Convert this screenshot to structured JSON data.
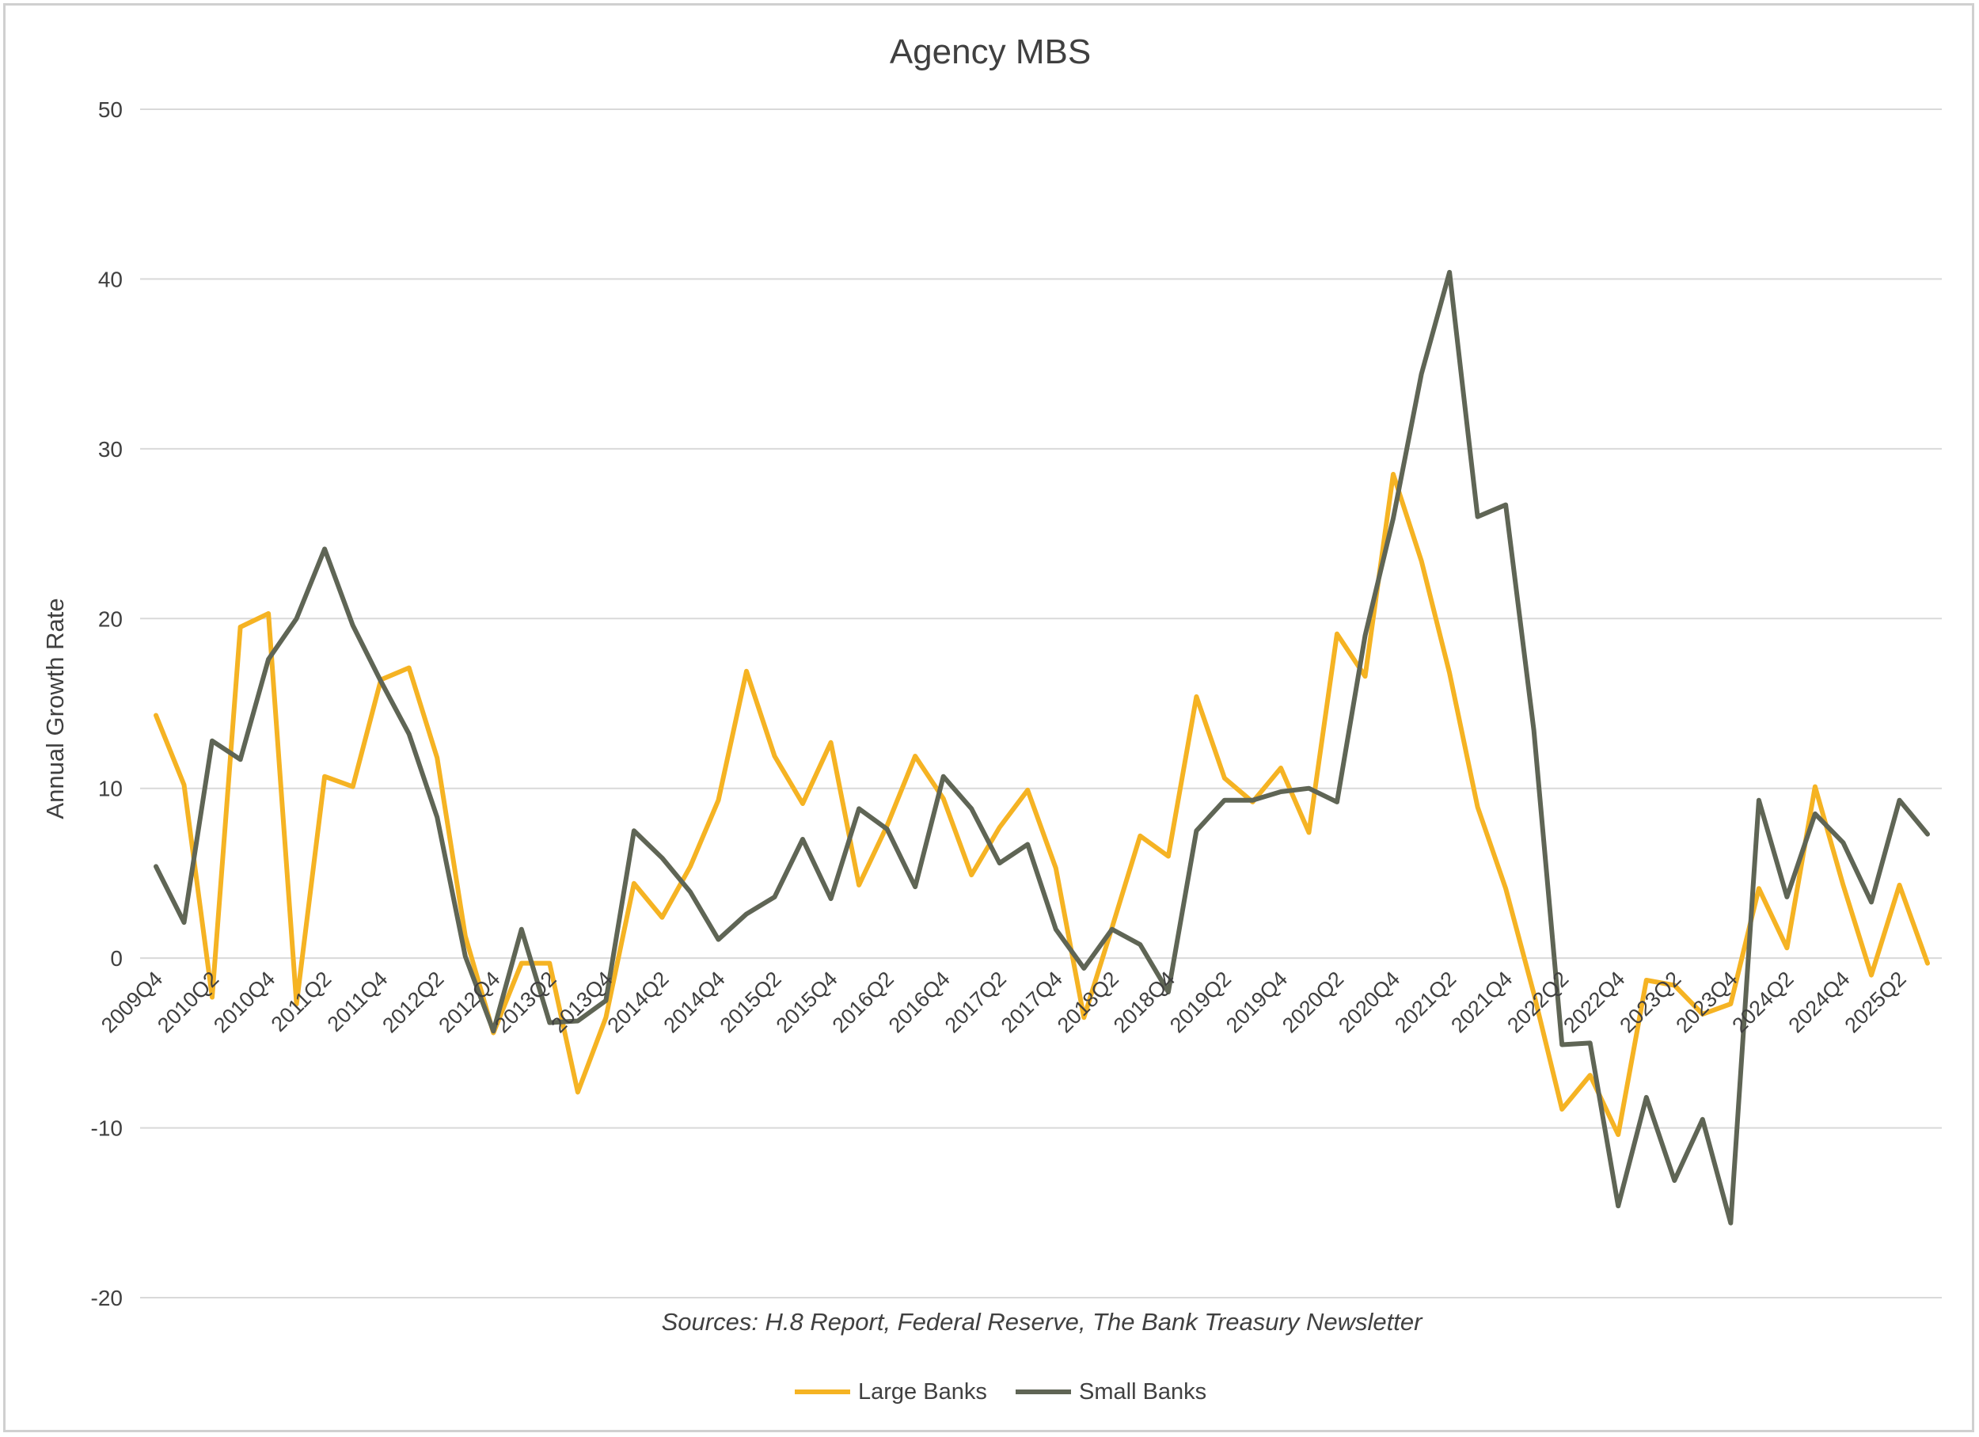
{
  "chart_data": {
    "type": "line",
    "title": "Agency MBS",
    "ylabel": "Annual Growth Rate",
    "xlabel": "",
    "ylim": [
      -20,
      50
    ],
    "yticks": [
      -20,
      -10,
      0,
      10,
      20,
      30,
      40,
      50
    ],
    "ytick_labels": [
      "-20",
      "-10",
      "0",
      "10",
      "20",
      "30",
      "40",
      "50"
    ],
    "grid": true,
    "legend_position": "bottom",
    "source": "Sources: H.8 Report, Federal Reserve, The Bank Treasury Newsletter",
    "categories": [
      "2009Q4",
      "2010Q1",
      "2010Q2",
      "2010Q3",
      "2010Q4",
      "2011Q1",
      "2011Q2",
      "2011Q3",
      "2011Q4",
      "2012Q1",
      "2012Q2",
      "2012Q3",
      "2012Q4",
      "2013Q1",
      "2013Q2",
      "2013Q3",
      "2013Q4",
      "2014Q1",
      "2014Q2",
      "2014Q3",
      "2014Q4",
      "2015Q1",
      "2015Q2",
      "2015Q3",
      "2015Q4",
      "2016Q1",
      "2016Q2",
      "2016Q3",
      "2016Q4",
      "2017Q1",
      "2017Q2",
      "2017Q3",
      "2017Q4",
      "2018Q1",
      "2018Q2",
      "2018Q3",
      "2018Q4",
      "2019Q1",
      "2019Q2",
      "2019Q3",
      "2019Q4",
      "2020Q1",
      "2020Q2",
      "2020Q3",
      "2020Q4",
      "2021Q1",
      "2021Q2",
      "2021Q3",
      "2021Q4",
      "2022Q1",
      "2022Q2",
      "2022Q3",
      "2022Q4",
      "2023Q1",
      "2023Q2",
      "2023Q3",
      "2023Q4",
      "2024Q1",
      "2024Q2",
      "2024Q3",
      "2024Q4",
      "2025Q1",
      "2025Q2",
      "2025Q3"
    ],
    "tick_labels": [
      "2009Q4",
      "2010Q2",
      "2010Q4",
      "2011Q2",
      "2011Q4",
      "2012Q2",
      "2012Q4",
      "2013Q2",
      "2013Q4",
      "2014Q2",
      "2014Q4",
      "2015Q2",
      "2015Q4",
      "2016Q2",
      "2016Q4",
      "2017Q2",
      "2017Q4",
      "2018Q2",
      "2018Q4",
      "2019Q2",
      "2019Q4",
      "2020Q2",
      "2020Q4",
      "2021Q2",
      "2021Q4",
      "2022Q2",
      "2022Q4",
      "2023Q2",
      "2023Q4",
      "2024Q2",
      "2024Q4",
      "2025Q2"
    ],
    "series": [
      {
        "name": "Large Banks",
        "color": "#F5B323",
        "values": [
          14.3,
          10.2,
          -2.3,
          19.5,
          20.3,
          -2.7,
          10.7,
          10.1,
          16.4,
          17.1,
          11.8,
          1.3,
          -4.4,
          -0.3,
          -0.3,
          -7.9,
          -3.5,
          4.4,
          2.4,
          5.4,
          9.3,
          16.9,
          11.9,
          9.1,
          12.7,
          4.3,
          7.8,
          11.9,
          9.4,
          4.9,
          7.7,
          9.9,
          5.3,
          -3.5,
          1.8,
          7.2,
          6.0,
          15.4,
          10.6,
          9.2,
          11.2,
          7.4,
          19.1,
          16.6,
          28.5,
          23.4,
          16.8,
          8.9,
          4.1,
          -2.1,
          -8.9,
          -6.9,
          -10.4,
          -1.3,
          -1.6,
          -3.3,
          -2.7,
          4.1,
          0.6,
          10.1,
          4.3,
          -1.0,
          4.3,
          -0.3
        ]
      },
      {
        "name": "Small Banks",
        "color": "#5F6555",
        "values": [
          5.4,
          2.1,
          12.8,
          11.7,
          17.6,
          20.0,
          24.1,
          19.6,
          16.3,
          13.2,
          8.3,
          0.1,
          -4.3,
          1.7,
          -3.8,
          -3.7,
          -2.5,
          7.5,
          5.9,
          3.9,
          1.1,
          2.6,
          3.6,
          7.0,
          3.5,
          8.8,
          7.6,
          4.2,
          10.7,
          8.8,
          5.6,
          6.7,
          1.7,
          -0.6,
          1.7,
          0.8,
          -2.0,
          7.5,
          9.3,
          9.3,
          9.8,
          10.0,
          9.2,
          19.0,
          25.9,
          34.4,
          40.4,
          26.0,
          26.7,
          13.4,
          -5.1,
          -5.0,
          -14.6,
          -8.2,
          -13.1,
          -9.5,
          -15.6,
          9.3,
          3.6,
          8.5,
          6.8,
          3.3,
          9.3,
          7.3
        ]
      }
    ]
  }
}
